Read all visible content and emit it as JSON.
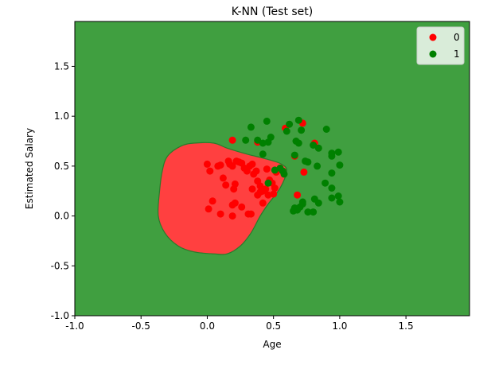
{
  "chart_data": {
    "type": "scatter",
    "title": "K-NN (Test set)",
    "xlabel": "Age",
    "ylabel": "Estimated Salary",
    "xlim": [
      -1.0,
      1.98
    ],
    "ylim": [
      -1.0,
      1.95
    ],
    "xticks": [
      "-1.0",
      "-0.5",
      "0.0",
      "0.5",
      "1.0",
      "1.5"
    ],
    "yticks": [
      "-1.0",
      "-0.5",
      "0.0",
      "0.5",
      "1.0",
      "1.5"
    ],
    "grid": false,
    "legend_position": "top-right",
    "background_region_color": "#409f40",
    "decision_region": {
      "label": "0",
      "color": "#ff4040",
      "edge_color": "#2b7a2b",
      "boundary": [
        [
          -0.36,
          0.25
        ],
        [
          -0.34,
          0.45
        ],
        [
          -0.3,
          0.6
        ],
        [
          -0.2,
          0.7
        ],
        [
          -0.1,
          0.73
        ],
        [
          0.05,
          0.73
        ],
        [
          0.15,
          0.68
        ],
        [
          0.3,
          0.62
        ],
        [
          0.45,
          0.57
        ],
        [
          0.56,
          0.52
        ],
        [
          0.6,
          0.45
        ],
        [
          0.55,
          0.28
        ],
        [
          0.46,
          0.12
        ],
        [
          0.4,
          0.0
        ],
        [
          0.33,
          -0.17
        ],
        [
          0.25,
          -0.3
        ],
        [
          0.15,
          -0.38
        ],
        [
          0.05,
          -0.38
        ],
        [
          -0.1,
          -0.36
        ],
        [
          -0.22,
          -0.3
        ],
        [
          -0.32,
          -0.17
        ],
        [
          -0.37,
          0.0
        ]
      ]
    },
    "series": [
      {
        "name": "0",
        "color": "#ff0000",
        "points": [
          [
            0.0,
            0.52
          ],
          [
            0.02,
            0.45
          ],
          [
            0.08,
            0.5
          ],
          [
            0.1,
            0.51
          ],
          [
            0.12,
            0.38
          ],
          [
            0.14,
            0.31
          ],
          [
            0.16,
            0.55
          ],
          [
            0.17,
            0.52
          ],
          [
            0.19,
            0.5
          ],
          [
            0.2,
            0.27
          ],
          [
            0.21,
            0.32
          ],
          [
            0.22,
            0.55
          ],
          [
            0.24,
            0.54
          ],
          [
            0.26,
            0.53
          ],
          [
            0.28,
            0.48
          ],
          [
            0.3,
            0.45
          ],
          [
            0.32,
            0.5
          ],
          [
            0.34,
            0.52
          ],
          [
            0.35,
            0.42
          ],
          [
            0.37,
            0.45
          ],
          [
            0.38,
            0.35
          ],
          [
            0.4,
            0.3
          ],
          [
            0.42,
            0.25
          ],
          [
            0.44,
            0.27
          ],
          [
            0.45,
            0.47
          ],
          [
            0.47,
            0.36
          ],
          [
            0.49,
            0.33
          ],
          [
            0.51,
            0.28
          ],
          [
            0.52,
            0.44
          ],
          [
            0.34,
            0.27
          ],
          [
            0.38,
            0.21
          ],
          [
            0.4,
            0.24
          ],
          [
            0.46,
            0.21
          ],
          [
            0.5,
            0.22
          ],
          [
            0.01,
            0.07
          ],
          [
            0.04,
            0.15
          ],
          [
            0.1,
            0.02
          ],
          [
            0.19,
            0.0
          ],
          [
            0.19,
            0.11
          ],
          [
            0.21,
            0.13
          ],
          [
            0.26,
            0.09
          ],
          [
            0.31,
            0.02
          ],
          [
            0.33,
            0.02
          ],
          [
            0.42,
            0.13
          ],
          [
            0.19,
            0.76
          ],
          [
            0.38,
            0.74
          ],
          [
            0.59,
            0.88
          ],
          [
            0.66,
            0.6
          ],
          [
            0.72,
            0.93
          ],
          [
            0.73,
            0.44
          ],
          [
            0.81,
            0.73
          ],
          [
            0.68,
            0.21
          ]
        ]
      },
      {
        "name": "1",
        "color": "#008000",
        "points": [
          [
            0.33,
            0.89
          ],
          [
            0.45,
            0.95
          ],
          [
            0.38,
            0.76
          ],
          [
            0.42,
            0.73
          ],
          [
            0.46,
            0.74
          ],
          [
            0.48,
            0.79
          ],
          [
            0.42,
            0.62
          ],
          [
            0.51,
            0.46
          ],
          [
            0.55,
            0.48
          ],
          [
            0.58,
            0.42
          ],
          [
            0.6,
            0.85
          ],
          [
            0.62,
            0.92
          ],
          [
            0.67,
            0.75
          ],
          [
            0.69,
            0.96
          ],
          [
            0.71,
            0.86
          ],
          [
            0.69,
            0.73
          ],
          [
            0.66,
            0.61
          ],
          [
            0.74,
            0.55
          ],
          [
            0.76,
            0.54
          ],
          [
            0.8,
            0.71
          ],
          [
            0.84,
            0.68
          ],
          [
            0.9,
            0.87
          ],
          [
            0.94,
            0.63
          ],
          [
            0.94,
            0.6
          ],
          [
            0.99,
            0.64
          ],
          [
            1.0,
            0.51
          ],
          [
            0.83,
            0.5
          ],
          [
            0.94,
            0.43
          ],
          [
            0.89,
            0.33
          ],
          [
            0.94,
            0.28
          ],
          [
            0.94,
            0.18
          ],
          [
            0.99,
            0.2
          ],
          [
            1.0,
            0.14
          ],
          [
            0.81,
            0.17
          ],
          [
            0.84,
            0.13
          ],
          [
            0.72,
            0.12
          ],
          [
            0.72,
            0.14
          ],
          [
            0.76,
            0.04
          ],
          [
            0.8,
            0.04
          ],
          [
            0.65,
            0.05
          ],
          [
            0.66,
            0.08
          ],
          [
            0.68,
            0.06
          ],
          [
            0.7,
            0.09
          ],
          [
            0.29,
            0.76
          ],
          [
            0.46,
            0.33
          ],
          [
            0.57,
            0.45
          ]
        ]
      }
    ]
  }
}
